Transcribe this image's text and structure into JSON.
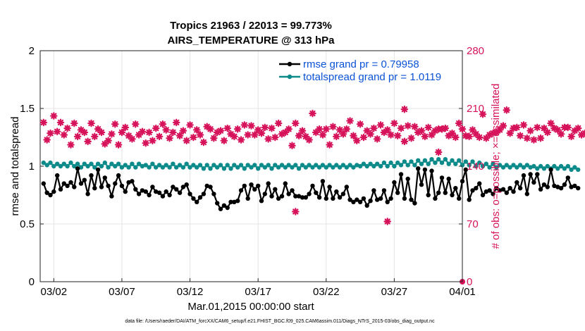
{
  "chart_data": {
    "type": "line",
    "title": "Tropics 21963 / 22013 = 99.773%",
    "subtitle": "AIRS_TEMPERATURE @ 313 hPa",
    "xlabel": "Mar.01,2015 00:00:00 start",
    "ylabel": "rmse and totalspread",
    "y2label": "# of obs: o=possible; ×=assimilated",
    "xlim": [
      0,
      31
    ],
    "ylim": [
      0,
      2
    ],
    "y2lim": [
      0,
      280
    ],
    "x_ticks": [
      1,
      6,
      11,
      16,
      21,
      26,
      31
    ],
    "x_tick_labels": [
      "03/02",
      "03/07",
      "03/12",
      "03/17",
      "03/22",
      "03/27",
      "04/01"
    ],
    "y_ticks": [
      0,
      0.5,
      1,
      1.5,
      2
    ],
    "y_tick_labels": [
      "0",
      "0.5",
      "1",
      "1.5",
      "2"
    ],
    "y2_ticks": [
      0,
      70,
      140,
      210,
      280
    ],
    "y2_tick_labels": [
      "0",
      "70",
      "140",
      "210",
      "280"
    ],
    "colors": {
      "rmse": "#000000",
      "totalspread": "#0d8a8a",
      "obs": "#d6135a",
      "legend_text": "#0b53d6",
      "grid": "#e4e4e4"
    },
    "legend": [
      {
        "name": "rmse grand pr = 0.79958",
        "series": "rmse"
      },
      {
        "name": "totalspread grand pr = 1.0119",
        "series": "totalspread"
      }
    ],
    "footer": "data file: /Users/raeder/DAI/ATM_forcXX/CAM6_setup/f.e21.FHIST_BGC.f09_025.CAM6assim.011/Diags_NTrS_2015-03/obs_diag_output.nc",
    "series": [
      {
        "name": "rmse",
        "start": 0.25,
        "step": 0.25,
        "values": [
          0.85,
          0.77,
          0.75,
          0.78,
          0.92,
          0.8,
          0.85,
          0.83,
          0.86,
          0.82,
          0.98,
          0.85,
          0.88,
          0.76,
          0.92,
          0.81,
          0.97,
          0.82,
          0.9,
          0.83,
          0.74,
          0.85,
          0.92,
          0.83,
          0.78,
          0.86,
          0.87,
          0.8,
          0.76,
          0.79,
          0.78,
          0.75,
          0.82,
          0.78,
          0.77,
          0.74,
          0.78,
          0.75,
          0.82,
          0.8,
          0.77,
          0.82,
          0.84,
          0.76,
          0.72,
          0.69,
          0.73,
          0.76,
          0.83,
          0.82,
          0.76,
          0.68,
          0.63,
          0.66,
          0.64,
          0.69,
          0.69,
          0.7,
          0.79,
          0.83,
          0.72,
          0.84,
          0.8,
          0.83,
          0.7,
          0.76,
          0.85,
          0.74,
          0.8,
          0.72,
          0.74,
          0.85,
          0.76,
          0.79,
          0.74,
          0.74,
          0.73,
          0.73,
          0.76,
          0.83,
          0.77,
          0.73,
          0.87,
          0.72,
          0.82,
          0.72,
          0.78,
          0.73,
          0.76,
          0.82,
          0.71,
          0.69,
          0.71,
          0.69,
          0.72,
          0.66,
          0.7,
          0.79,
          0.71,
          0.72,
          0.79,
          0.69,
          0.72,
          0.86,
          0.77,
          0.93,
          0.72,
          0.89,
          0.71,
          0.68,
          0.98,
          0.84,
          0.97,
          0.75,
          0.96,
          0.72,
          0.77,
          0.9,
          0.77,
          0.89,
          0.75,
          0.81,
          0.72,
          0.87,
          0.97,
          0.71,
          0.79,
          0.81,
          0.85,
          0.75,
          0.78,
          0.79,
          0.76,
          0.81,
          0.79,
          0.8,
          0.77,
          0.81,
          0.78,
          0.86,
          0.81,
          0.92,
          0.76,
          0.93,
          0.86,
          0.93,
          0.8,
          0.84,
          0.82,
          0.97,
          0.83,
          0.82,
          0.81,
          0.84,
          0.9,
          0.82,
          0.83,
          0.81
        ]
      },
      {
        "name": "totalspread",
        "start": 0.25,
        "step": 0.25,
        "values": [
          1.03,
          1.01,
          1.03,
          1.0,
          1.02,
          1.0,
          1.02,
          1.0,
          1.03,
          1.0,
          1.02,
          0.99,
          1.02,
          1.0,
          1.02,
          0.99,
          1.02,
          1.0,
          1.03,
          0.99,
          1.02,
          1.0,
          1.02,
          0.99,
          1.01,
          0.99,
          1.02,
          0.99,
          1.02,
          1.0,
          1.01,
          0.99,
          1.02,
          0.99,
          1.01,
          0.99,
          1.01,
          0.99,
          1.02,
          0.99,
          1.01,
          0.99,
          1.02,
          0.99,
          1.01,
          0.99,
          1.01,
          0.98,
          1.01,
          0.98,
          1.01,
          0.99,
          1.01,
          0.98,
          1.01,
          0.98,
          1.01,
          0.99,
          1.01,
          0.98,
          1.01,
          0.99,
          1.01,
          0.98,
          1.01,
          0.99,
          1.01,
          0.98,
          1.01,
          0.99,
          1.01,
          0.99,
          1.01,
          0.99,
          1.01,
          0.98,
          1.01,
          0.99,
          1.01,
          0.99,
          1.01,
          0.99,
          1.01,
          0.99,
          1.01,
          0.99,
          1.01,
          0.99,
          1.01,
          0.99,
          1.01,
          0.99,
          1.01,
          1.0,
          1.02,
          1.0,
          1.02,
          1.0,
          1.02,
          1.0,
          1.03,
          1.0,
          1.03,
          1.0,
          1.03,
          1.01,
          1.04,
          1.01,
          1.04,
          1.01,
          1.05,
          1.02,
          1.05,
          1.02,
          1.06,
          1.03,
          1.06,
          1.03,
          1.06,
          1.02,
          1.05,
          1.02,
          1.05,
          1.01,
          1.04,
          1.01,
          1.04,
          1.0,
          1.03,
          1.0,
          1.02,
          0.99,
          1.02,
          0.99,
          1.01,
          0.99,
          1.01,
          0.99,
          1.01,
          0.99,
          1.01,
          0.99,
          1.01,
          0.99,
          1.0,
          0.98,
          1.0,
          0.98,
          1.0,
          0.98,
          1.0,
          0.98,
          1.0,
          0.98,
          1.0,
          0.97,
          0.99,
          0.97
        ]
      },
      {
        "name": "obs_assimilated",
        "axis": "right",
        "start": 0.25,
        "step": 0.25,
        "values": [
          193,
          172,
          180,
          201,
          182,
          193,
          178,
          186,
          166,
          192,
          176,
          184,
          181,
          170,
          192,
          176,
          185,
          181,
          167,
          171,
          179,
          191,
          166,
          181,
          187,
          177,
          173,
          191,
          178,
          182,
          168,
          181,
          171,
          186,
          176,
          191,
          184,
          174,
          181,
          193,
          177,
          183,
          171,
          190,
          175,
          184,
          178,
          169,
          188,
          185,
          174,
          181,
          183,
          171,
          186,
          179,
          176,
          185,
          172,
          190,
          178,
          189,
          178,
          184,
          180,
          187,
          173,
          186,
          175,
          192,
          179,
          181,
          185,
          165,
          192,
          177,
          183,
          176,
          172,
          204,
          181,
          185,
          178,
          185,
          166,
          188,
          176,
          184,
          179,
          185,
          195,
          177,
          171,
          191,
          175,
          183,
          179,
          186,
          173,
          190,
          181,
          184,
          178,
          192,
          177,
          186,
          170,
          189,
          174,
          188,
          181,
          183,
          176,
          187,
          178,
          183,
          185,
          185,
          186,
          177,
          180,
          175,
          192,
          185,
          177,
          176,
          184,
          179,
          175,
          203,
          174,
          178,
          180,
          181,
          184,
          189,
          208,
          180,
          186,
          187,
          177,
          190,
          174,
          183,
          172,
          187,
          174,
          186,
          181,
          192,
          186,
          184,
          179,
          187,
          187,
          176,
          183,
          186,
          178,
          180
        ]
      }
    ],
    "outliers": [
      {
        "x": 18.75,
        "y2": 85
      },
      {
        "x": 25.5,
        "y2": 73
      },
      {
        "x": 26.75,
        "y2": 209
      },
      {
        "x": 29.25,
        "y2": 157
      }
    ],
    "zero_marker": {
      "x": 31,
      "y2": 0
    }
  }
}
